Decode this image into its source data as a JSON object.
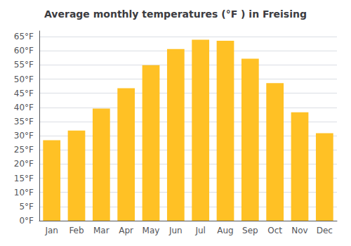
{
  "chart_data": {
    "type": "bar",
    "title": "Average monthly temperatures (°F ) in Freising",
    "categories": [
      "Jan",
      "Feb",
      "Mar",
      "Apr",
      "May",
      "Jun",
      "Jul",
      "Aug",
      "Sep",
      "Oct",
      "Nov",
      "Dec"
    ],
    "values": [
      28.4,
      31.8,
      39.6,
      46.8,
      54.9,
      60.6,
      63.9,
      63.5,
      57.2,
      48.6,
      38.3,
      30.9
    ],
    "color": "#FFC125",
    "ylim": [
      0,
      67
    ],
    "yticks": [
      {
        "value": 0,
        "label": "0°F"
      },
      {
        "value": 5,
        "label": "5°F"
      },
      {
        "value": 10,
        "label": "10°F"
      },
      {
        "value": 15,
        "label": "15°F"
      },
      {
        "value": 20,
        "label": "20°F"
      },
      {
        "value": 25,
        "label": "25°F"
      },
      {
        "value": 30,
        "label": "30°F"
      },
      {
        "value": 35,
        "label": "35°F"
      },
      {
        "value": 40,
        "label": "40°F"
      },
      {
        "value": 45,
        "label": "45°F"
      },
      {
        "value": 50,
        "label": "50°F"
      },
      {
        "value": 55,
        "label": "55°F"
      },
      {
        "value": 60,
        "label": "60°F"
      },
      {
        "value": 65,
        "label": "65°F"
      }
    ],
    "grid": true
  }
}
